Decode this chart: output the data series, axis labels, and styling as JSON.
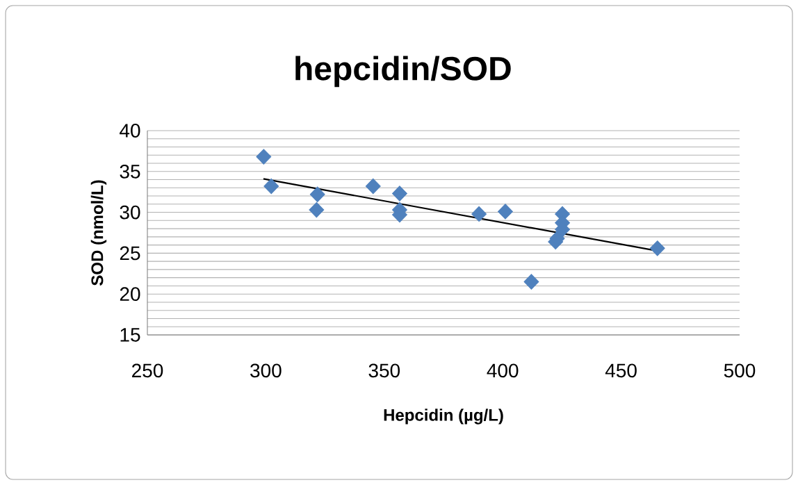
{
  "chart_data": {
    "type": "scatter",
    "title": "hepcidin/SOD",
    "xlabel": "Hepcidin (µg/L)",
    "ylabel": "SOD (nmol/L)",
    "xlim": [
      250,
      500
    ],
    "xticks": [
      250,
      300,
      350,
      400,
      450,
      500
    ],
    "ylim": [
      15,
      40
    ],
    "yticks": [
      15,
      20,
      25,
      30,
      35,
      40
    ],
    "grid": "y",
    "marker": "diamond",
    "series": [
      {
        "color": "#4f81bd",
        "x": [
          299.1,
          302.3,
          321.8,
          321.4,
          345.3,
          356.5,
          356.5,
          356.5,
          390,
          401.1,
          412.1,
          422.3,
          423,
          425.2,
          425.2,
          425.2,
          465.3
        ],
        "values": [
          36.8,
          33.2,
          32.2,
          30.3,
          33.2,
          32.3,
          30.3,
          29.7,
          29.8,
          30.1,
          21.5,
          26.4,
          26.8,
          29.8,
          28.7,
          27.9,
          25.6
        ]
      },
      {
        "type": "line",
        "color": "#000000",
        "marker": "none",
        "x": [
          299,
          465
        ],
        "values": [
          34.1,
          25.3
        ]
      }
    ]
  }
}
